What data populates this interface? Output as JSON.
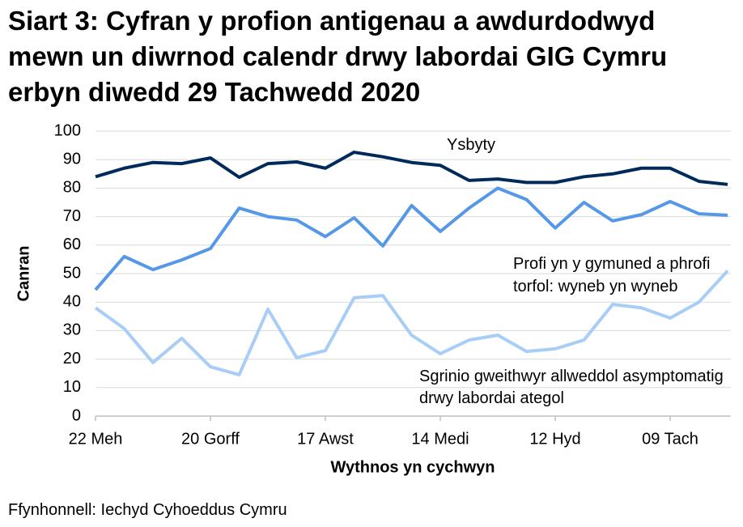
{
  "chart_data": {
    "type": "line",
    "title": "Siart 3: Cyfran y profion antigenau a awdurdodwyd mewn un diwrnod calendr drwy labordai GIG Cymru erbyn diwedd 29 Tachwedd 2020",
    "xlabel": "Wythnos yn cychwyn",
    "ylabel": "Canran",
    "source": "Ffynhonnell: Iechyd Cyhoeddus Cymru",
    "categories": [
      "22 Meh",
      null,
      null,
      null,
      "20 Gorff",
      null,
      null,
      null,
      "17 Awst",
      null,
      null,
      null,
      "14 Medi",
      null,
      null,
      null,
      "12 Hyd",
      null,
      null,
      null,
      "09 Tach",
      null,
      null
    ],
    "series": [
      {
        "name": "Ysbyty",
        "color": "#002a5c",
        "values": [
          84,
          87,
          89,
          88.6,
          90.6,
          83.8,
          88.6,
          89.2,
          87,
          92.6,
          91,
          89,
          88,
          82.7,
          83.2,
          82,
          82,
          84,
          85,
          87,
          87,
          82.4,
          81.3
        ]
      },
      {
        "name": "Profi yn y gymuned a phrofi torfol: wyneb yn wyneb",
        "color": "#5598e8",
        "values": [
          44.3,
          56,
          51.4,
          54.8,
          58.8,
          73,
          70,
          68.8,
          63,
          69.6,
          59.7,
          73.9,
          64.8,
          73,
          80,
          76,
          66,
          75,
          68.5,
          70.7,
          75.3,
          71,
          70.5
        ]
      },
      {
        "name": "Sgrinio gweithwyr allweddol asymptomatig drwy labordai ategol",
        "color": "#a8cdf7",
        "values": [
          38,
          30.7,
          18.8,
          27.3,
          17.3,
          14.5,
          37.5,
          20.5,
          23,
          41.5,
          42.3,
          28.4,
          21.9,
          26.7,
          28.4,
          22.7,
          23.6,
          26.7,
          39.2,
          38,
          34.4,
          40,
          51
        ]
      }
    ],
    "ylim": [
      0,
      100
    ],
    "yticks": [
      0,
      10,
      20,
      30,
      40,
      50,
      60,
      70,
      80,
      90,
      100
    ],
    "grid": true
  }
}
